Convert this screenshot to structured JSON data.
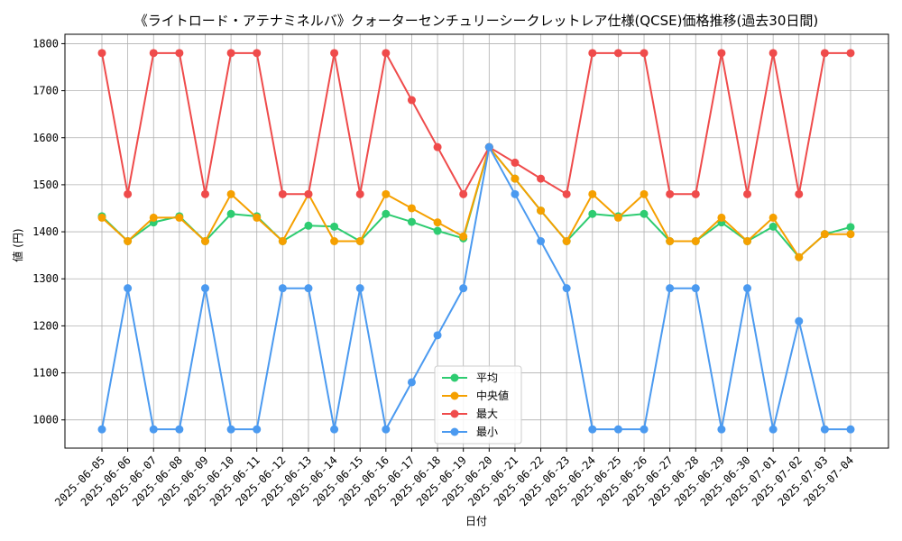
{
  "chart_data": {
    "type": "line",
    "title": "《ライトロード・アテナミネルバ》クォーターセンチュリーシークレットレア仕様(QCSE)価格推移(過去30日間)",
    "xlabel": "日付",
    "ylabel": "値 (円)",
    "ylim": [
      940,
      1820
    ],
    "yticks": [
      1000,
      1100,
      1200,
      1300,
      1400,
      1500,
      1600,
      1700,
      1800
    ],
    "grid": true,
    "legend_position": "bottom-center",
    "categories": [
      "2025-06-05",
      "2025-06-06",
      "2025-06-07",
      "2025-06-08",
      "2025-06-09",
      "2025-06-10",
      "2025-06-11",
      "2025-06-12",
      "2025-06-13",
      "2025-06-14",
      "2025-06-15",
      "2025-06-16",
      "2025-06-17",
      "2025-06-18",
      "2025-06-19",
      "2025-06-20",
      "2025-06-21",
      "2025-06-22",
      "2025-06-23",
      "2025-06-24",
      "2025-06-25",
      "2025-06-26",
      "2025-06-27",
      "2025-06-28",
      "2025-06-29",
      "2025-06-30",
      "2025-07-01",
      "2025-07-02",
      "2025-07-03",
      "2025-07-04"
    ],
    "series": [
      {
        "name": "平均",
        "color": "#2ecc71",
        "values": [
          1433,
          1380,
          1420,
          1433,
          1380,
          1438,
          1433,
          1380,
          1413,
          1411,
          1380,
          1438,
          1421,
          1402,
          1386,
          1580,
          1513,
          1445,
          1380,
          1438,
          1433,
          1438,
          1380,
          1380,
          1420,
          1380,
          1411,
          1346,
          1395,
          1410
        ]
      },
      {
        "name": "中央値",
        "color": "#f5a000",
        "values": [
          1430,
          1380,
          1430,
          1430,
          1380,
          1480,
          1430,
          1380,
          1480,
          1380,
          1380,
          1480,
          1450,
          1420,
          1390,
          1580,
          1513,
          1445,
          1380,
          1480,
          1430,
          1480,
          1380,
          1380,
          1430,
          1380,
          1430,
          1346,
          1395,
          1395
        ]
      },
      {
        "name": "最大",
        "color": "#ef4b4b",
        "values": [
          1780,
          1480,
          1780,
          1780,
          1480,
          1780,
          1780,
          1480,
          1480,
          1780,
          1480,
          1780,
          1680,
          1580,
          1480,
          1580,
          1547,
          1513,
          1480,
          1780,
          1780,
          1780,
          1480,
          1480,
          1780,
          1480,
          1780,
          1480,
          1780,
          1780
        ]
      },
      {
        "name": "最小",
        "color": "#4b9af0",
        "values": [
          980,
          1280,
          980,
          980,
          1280,
          980,
          980,
          1280,
          1280,
          980,
          1280,
          980,
          1080,
          1180,
          1280,
          1580,
          1480,
          1380,
          1280,
          980,
          980,
          980,
          1280,
          1280,
          980,
          1280,
          980,
          1210,
          980,
          980
        ]
      }
    ]
  }
}
